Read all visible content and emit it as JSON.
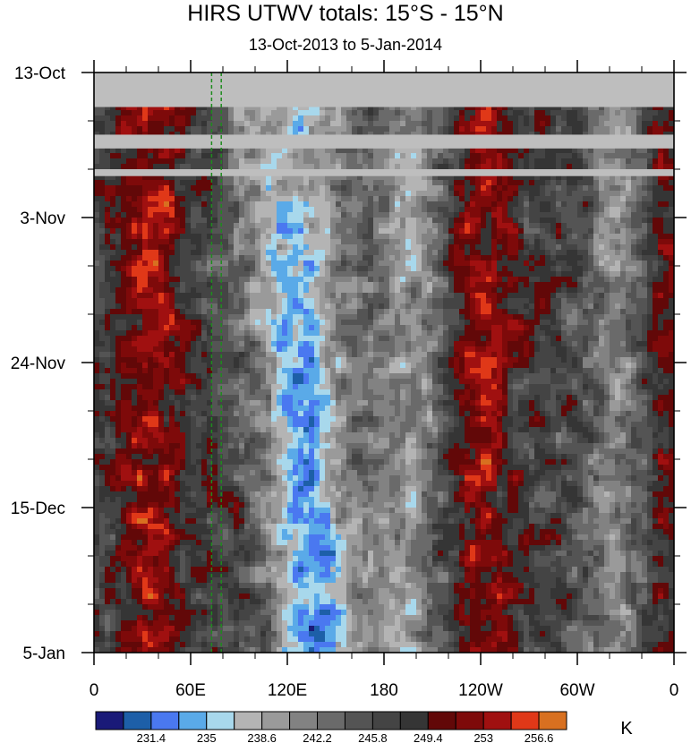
{
  "chart_data": {
    "type": "heatmap",
    "title": "HIRS UTWV totals: 15°S - 15°N",
    "subtitle": "13-Oct-2013 to 5-Jan-2014",
    "xlabel": "",
    "ylabel": "",
    "x_tick_labels": [
      "0",
      "60E",
      "120E",
      "180",
      "120W",
      "60W",
      "0"
    ],
    "x_tick_longitudes_east": [
      0,
      60,
      120,
      180,
      240,
      300,
      360
    ],
    "xlim": [
      0,
      360
    ],
    "y_tick_labels": [
      "13-Oct",
      "3-Nov",
      "24-Nov",
      "15-Dec",
      "5-Jan"
    ],
    "y_tick_dates": [
      "2013-10-13",
      "2013-11-03",
      "2013-11-24",
      "2013-12-15",
      "2014-01-05"
    ],
    "ylim": [
      "2013-10-13",
      "2014-01-05"
    ],
    "y_reversed": true,
    "grid": false,
    "colorbar": {
      "unit": "K",
      "placement": "bottom",
      "level_labels": [
        "231.4",
        "235",
        "238.6",
        "242.2",
        "245.8",
        "249.4",
        "253",
        "256.6"
      ],
      "levels": [
        229.6,
        231.4,
        233.2,
        235,
        236.8,
        238.6,
        240.4,
        242.2,
        244,
        245.8,
        247.6,
        249.4,
        251.2,
        253,
        254.8,
        256.6
      ],
      "colors": [
        "#1a1a78",
        "#1d5fa8",
        "#4a78f0",
        "#5aaae8",
        "#a8d8ec",
        "#b4b4b4",
        "#9a9a9a",
        "#828282",
        "#6a6a6a",
        "#545454",
        "#444444",
        "#353535",
        "#620808",
        "#7e0a0a",
        "#a01010",
        "#e03818",
        "#d87020"
      ]
    },
    "missing_data_rows": [
      {
        "from": "2013-10-13",
        "to": "2013-10-18"
      },
      {
        "from": "2013-10-22",
        "to": "2013-10-24"
      },
      {
        "from": "2013-10-27",
        "to": "2013-10-28"
      }
    ],
    "reference_lines_longitude_east": [
      73,
      79
    ],
    "reference_line_color": "#1e8c1e",
    "missing_color": "#bebebe",
    "wet_bands_longitude_east": [
      100,
      135,
      195,
      330
    ],
    "dry_bands_longitude_east": [
      35,
      240,
      350
    ]
  }
}
